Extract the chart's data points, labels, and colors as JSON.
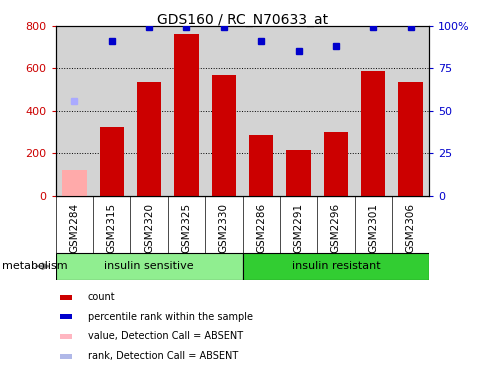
{
  "title": "GDS160 / RC_N70633_at",
  "samples": [
    "GSM2284",
    "GSM2315",
    "GSM2320",
    "GSM2325",
    "GSM2330",
    "GSM2286",
    "GSM2291",
    "GSM2296",
    "GSM2301",
    "GSM2306"
  ],
  "bar_values": [
    120,
    325,
    535,
    760,
    570,
    285,
    215,
    300,
    585,
    535
  ],
  "bar_colors": [
    "#ffaaaa",
    "#cc0000",
    "#cc0000",
    "#cc0000",
    "#cc0000",
    "#cc0000",
    "#cc0000",
    "#cc0000",
    "#cc0000",
    "#cc0000"
  ],
  "dot_values": [
    56,
    91,
    99,
    99,
    99,
    91,
    85,
    88,
    99,
    99
  ],
  "dot_colors": [
    "#aaaaff",
    "#0000cc",
    "#0000cc",
    "#0000cc",
    "#0000cc",
    "#0000cc",
    "#0000cc",
    "#0000cc",
    "#0000cc",
    "#0000cc"
  ],
  "ylim_left": [
    0,
    800
  ],
  "ylim_right": [
    0,
    100
  ],
  "yticks_left": [
    0,
    200,
    400,
    600,
    800
  ],
  "yticks_right": [
    0,
    25,
    50,
    75,
    100
  ],
  "ytick_labels_right": [
    "0",
    "25",
    "50",
    "75",
    "100%"
  ],
  "group1_label": "insulin sensitive",
  "group2_label": "insulin resistant",
  "group1_count": 5,
  "group2_count": 5,
  "metabolism_label": "metabolism",
  "legend_items": [
    {
      "label": "count",
      "color": "#cc0000"
    },
    {
      "label": "percentile rank within the sample",
      "color": "#0000cc"
    },
    {
      "label": "value, Detection Call = ABSENT",
      "color": "#ffb6c1"
    },
    {
      "label": "rank, Detection Call = ABSENT",
      "color": "#b0b8e8"
    }
  ],
  "plot_bg_color": "#d3d3d3",
  "label_bg_color": "#d3d3d3",
  "group1_color": "#90ee90",
  "group2_color": "#32cd32",
  "bar_width": 0.65,
  "title_fontsize": 10,
  "axis_fontsize": 8,
  "label_fontsize": 8
}
